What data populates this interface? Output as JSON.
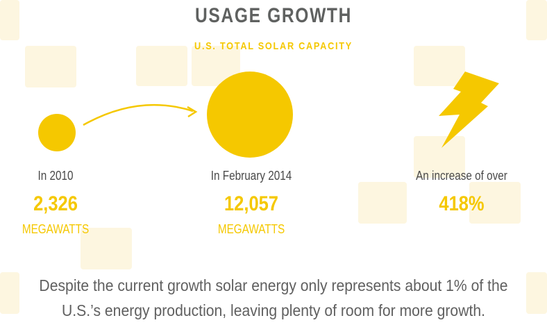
{
  "title": "USAGE GROWTH",
  "subtitle": "U.S. TOTAL SOLAR CAPACITY",
  "colors": {
    "accent": "#f5c800",
    "text": "#4a4a4a",
    "title": "#5f6160",
    "tile": "#fdf6e0"
  },
  "items": [
    {
      "label": "In 2010",
      "value": "2,326",
      "unit": "MEGAWATTS",
      "icon": "small-sun-circle"
    },
    {
      "label": "In February 2014",
      "value": "12,057",
      "unit": "MEGAWATTS",
      "icon": "large-sun-circle"
    },
    {
      "label": "An increase of over",
      "value": "418%",
      "icon": "lightning-bolt-icon"
    }
  ],
  "footer": {
    "line1": "Despite the current growth solar energy only represents about 1% of the",
    "line2": "U.S.’s energy production, leaving plenty of room for more growth."
  }
}
